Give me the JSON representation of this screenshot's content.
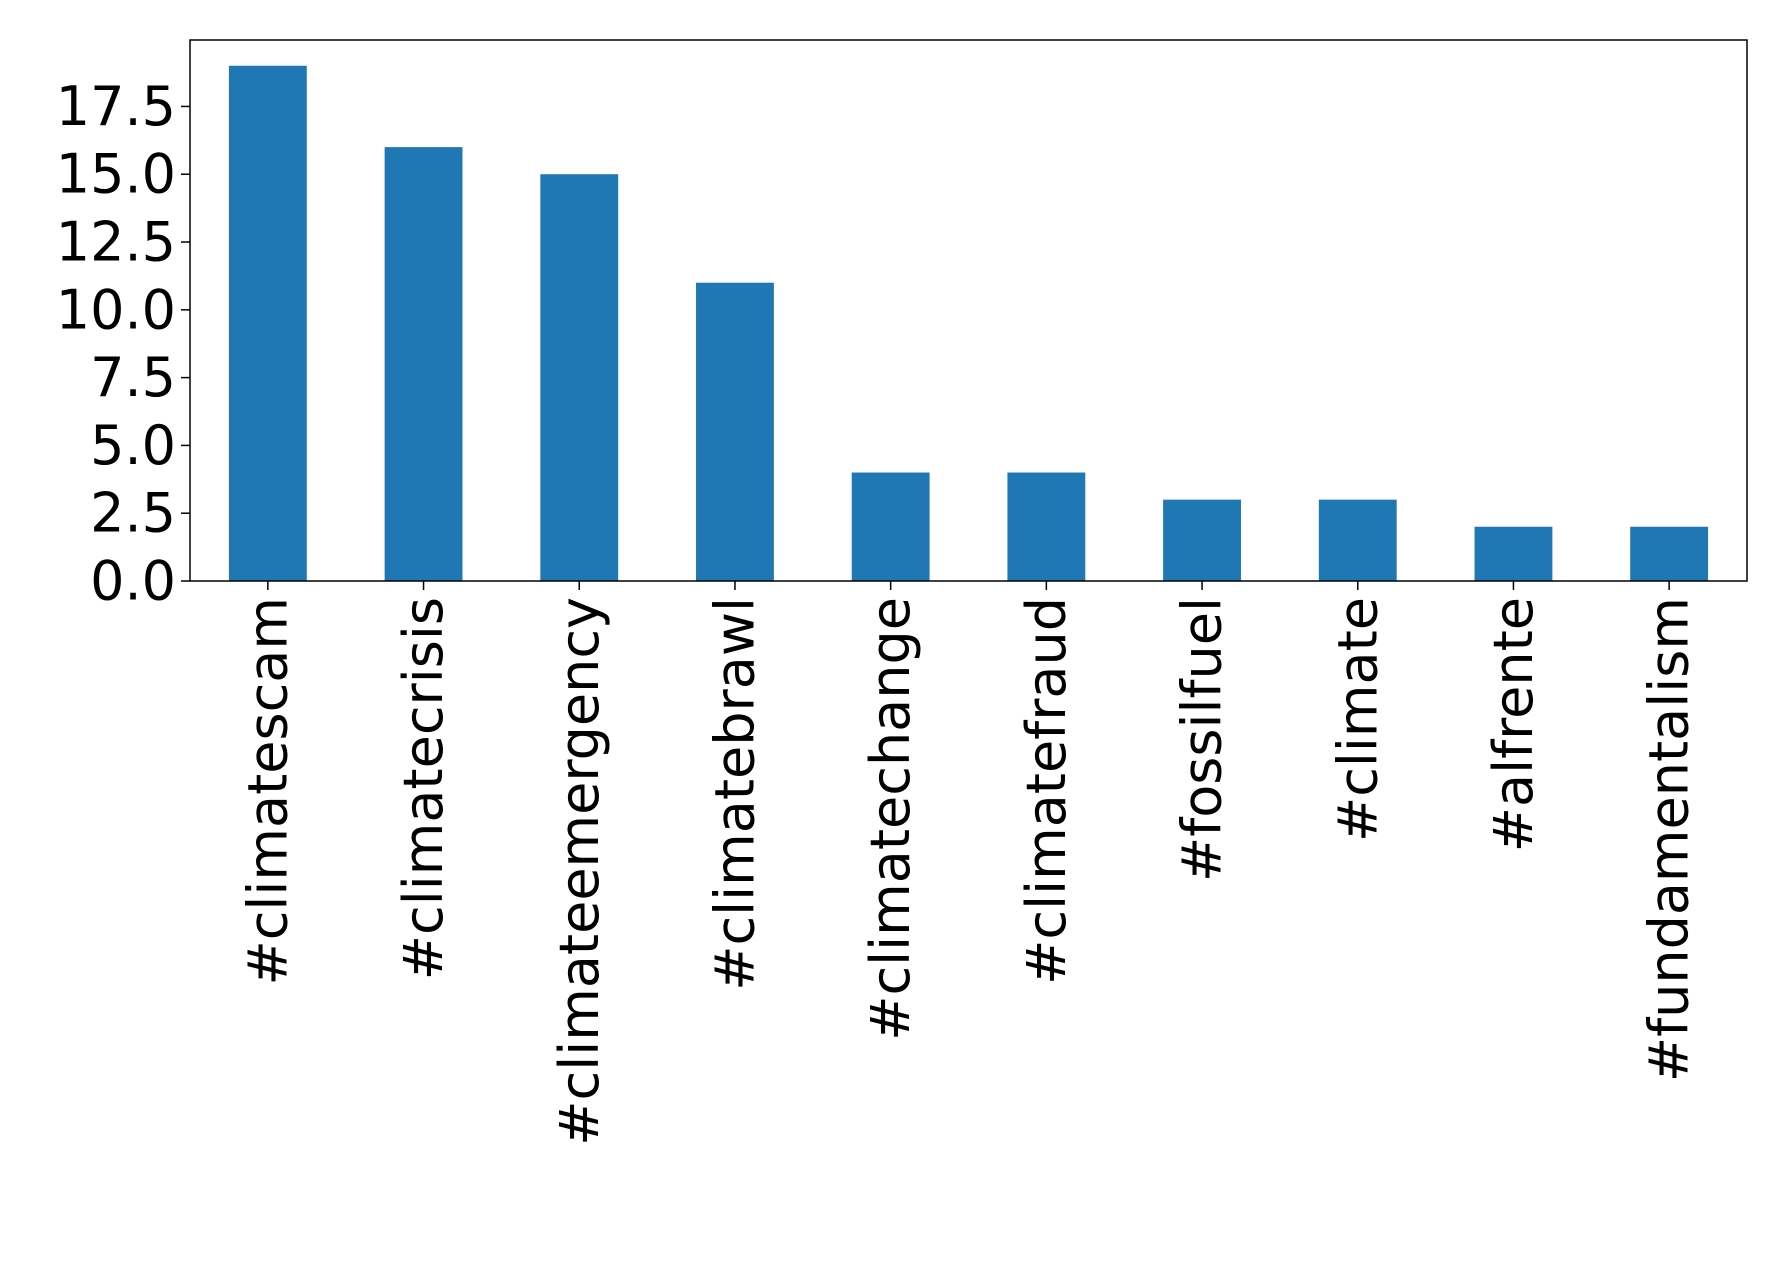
{
  "chart_data": {
    "type": "bar",
    "categories": [
      "#climatescam",
      "#climatecrisis",
      "#climateemergency",
      "#climatebrawl",
      "#climatechange",
      "#climatefraud",
      "#fossilfuel",
      "#climate",
      "#alfrente",
      "#fundamentalism"
    ],
    "values": [
      19,
      16,
      15,
      11,
      4,
      4,
      3,
      3,
      2,
      2
    ],
    "color": "#1f77b4",
    "ylim": [
      0,
      19.95
    ],
    "yticks": [
      {
        "value": 0,
        "label": "0.0"
      },
      2.5,
      {
        "value": 5,
        "label": "5.0"
      },
      7.5,
      {
        "value": 10,
        "label": "10.0"
      },
      12.5,
      {
        "value": 15,
        "label": "15.0"
      },
      17.5
    ],
    "grid": false
  }
}
